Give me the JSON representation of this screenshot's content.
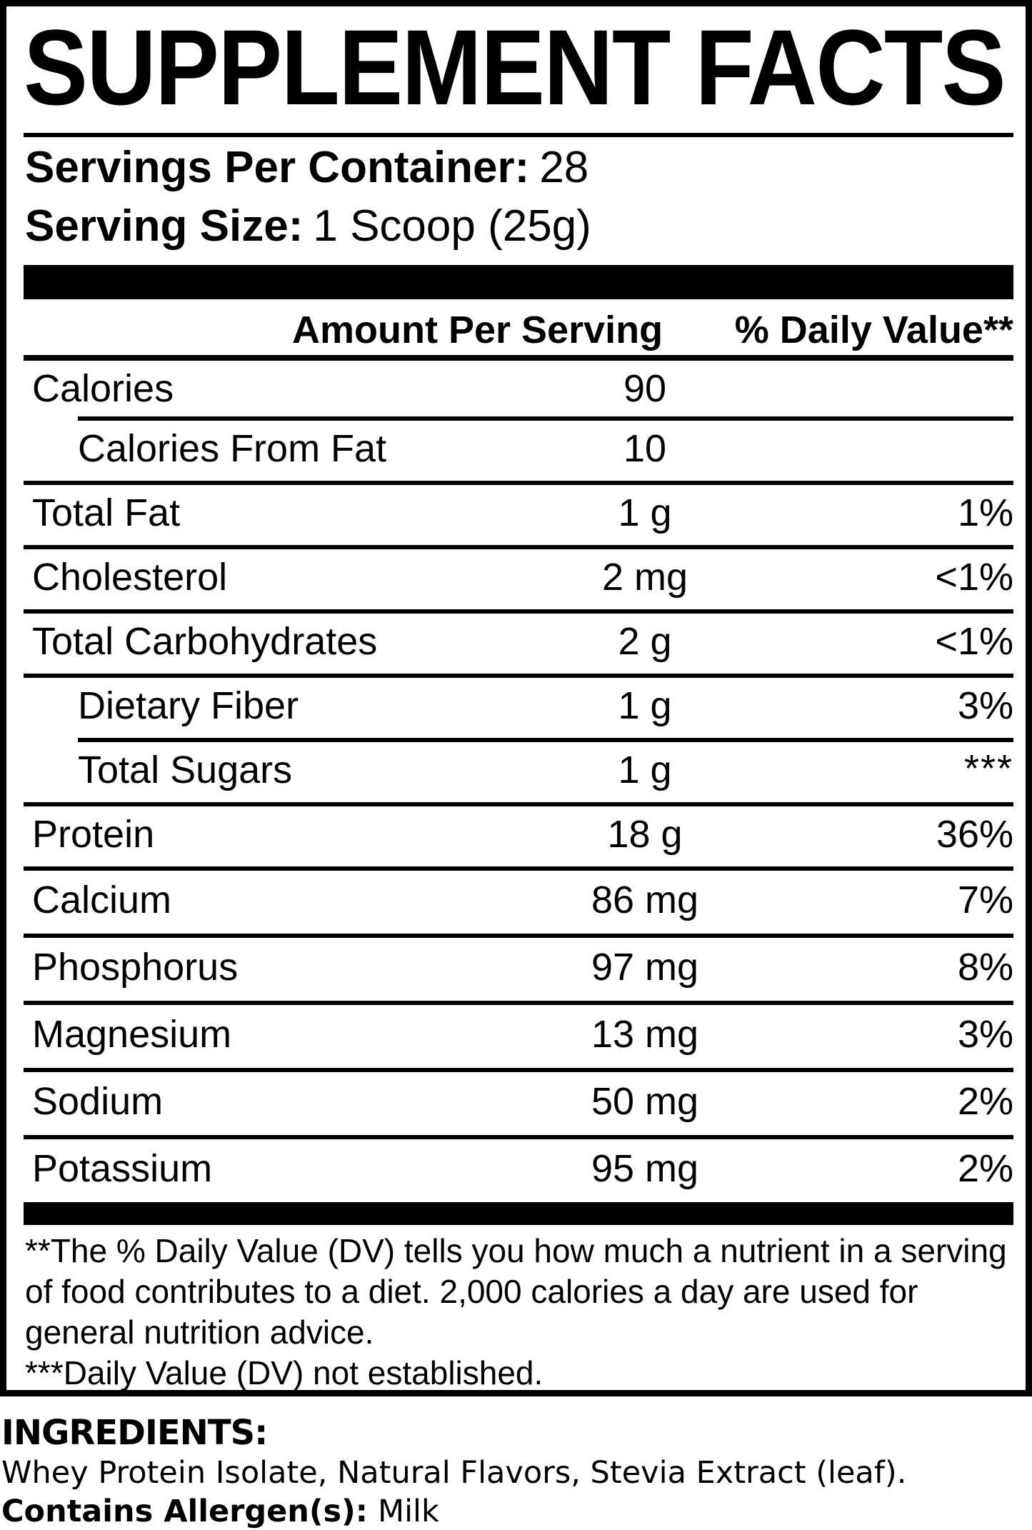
{
  "label": {
    "title": "SUPPLEMENT FACTS",
    "servings": {
      "label": "Servings Per Container:",
      "value": "28"
    },
    "serving_size": {
      "label": "Serving Size:",
      "value": "1 Scoop (25g)"
    },
    "columns": {
      "amount": "Amount Per Serving",
      "daily_value": "% Daily Value**"
    },
    "rows": [
      {
        "name": "Calories",
        "amount": "90",
        "dv": ""
      },
      {
        "name": "Calories From Fat",
        "amount": "10",
        "dv": ""
      },
      {
        "name": "Total Fat",
        "amount": "1 g",
        "dv": "1%"
      },
      {
        "name": "Cholesterol",
        "amount": "2 mg",
        "dv": "<1%"
      },
      {
        "name": "Total Carbohydrates",
        "amount": "2 g",
        "dv": "<1%"
      },
      {
        "name": "Dietary Fiber",
        "amount": "1 g",
        "dv": "3%"
      },
      {
        "name": "Total Sugars",
        "amount": "1 g",
        "dv": "***"
      },
      {
        "name": "Protein",
        "amount": "18 g",
        "dv": "36%"
      },
      {
        "name": "Calcium",
        "amount": "86 mg",
        "dv": "7%"
      },
      {
        "name": "Phosphorus",
        "amount": "97 mg",
        "dv": "8%"
      },
      {
        "name": "Magnesium",
        "amount": "13 mg",
        "dv": "3%"
      },
      {
        "name": "Sodium",
        "amount": "50 mg",
        "dv": "2%"
      },
      {
        "name": "Potassium",
        "amount": "95 mg",
        "dv": "2%"
      }
    ],
    "footnotes": {
      "daily_value": "**The % Daily Value (DV) tells you how much a nutrient in a serving of food contributes to a diet. 2,000 calories a day are used for general nutrition advice.",
      "not_established": "***Daily Value (DV) not established."
    }
  },
  "ingredients": {
    "heading": "INGREDIENTS:",
    "list": "Whey Protein Isolate, Natural Flavors, Stevia Extract (leaf).",
    "allergen": {
      "label": "Contains Allergen(s):",
      "value": "Milk"
    }
  },
  "colors": {
    "ink": "#000000",
    "paper": "#ffffff"
  }
}
